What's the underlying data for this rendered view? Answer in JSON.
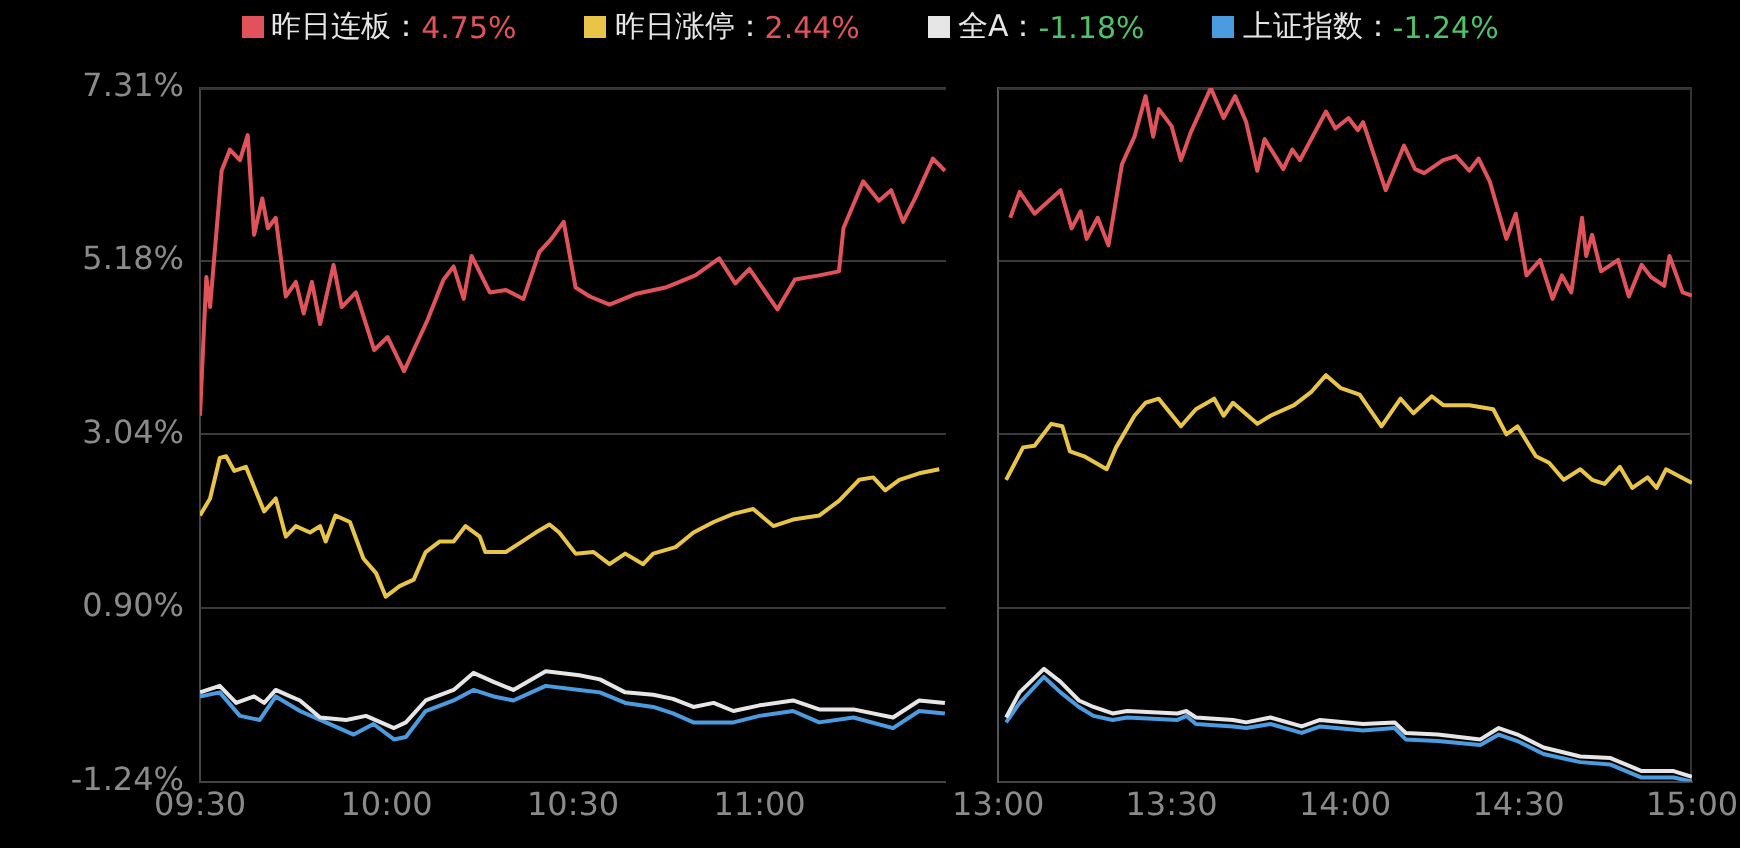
{
  "chart_data": [
    {
      "type": "line",
      "xlim": [
        9.5,
        11.5
      ],
      "xticks": [
        {
          "value": 9.5,
          "label": "09:30"
        },
        {
          "value": 10,
          "label": "10:00"
        },
        {
          "value": 10.5,
          "label": "10:30"
        },
        {
          "value": 11,
          "label": "11:00"
        }
      ],
      "ylim": [
        -1.24,
        7.31
      ],
      "yticks": [
        {
          "value": -1.24,
          "label": "-1.24%"
        },
        {
          "value": 0.9,
          "label": "0.90%"
        },
        {
          "value": 3.04,
          "label": "3.04%"
        },
        {
          "value": 5.18,
          "label": "5.18%"
        },
        {
          "value": 7.31,
          "label": "7.31%"
        }
      ],
      "grid": "y",
      "legend": "top",
      "marker": "none",
      "line_style": "solid",
      "series": [
        {
          "name": "昨日连板：4.75%",
          "color": "#e0535a",
          "x": [
            9.5,
            9.517,
            9.527,
            9.558,
            9.58,
            9.607,
            9.628,
            9.645,
            9.667,
            9.682,
            9.703,
            9.73,
            9.757,
            9.778,
            9.8,
            9.822,
            9.858,
            9.88,
            9.918,
            9.967,
            10.003,
            10.047,
            10.11,
            10.153,
            10.18,
            10.207,
            10.228,
            10.277,
            10.32,
            10.367,
            10.41,
            10.442,
            10.475,
            10.507,
            10.545,
            10.598,
            10.667,
            10.748,
            10.828,
            10.892,
            10.935,
            10.973,
            11.048,
            11.095,
            11.16,
            11.213,
            11.225,
            11.278,
            11.32,
            11.353,
            11.385,
            11.417,
            11.465,
            11.497
          ],
          "values": [
            3.27,
            4.98,
            4.61,
            6.29,
            6.55,
            6.42,
            6.73,
            5.5,
            5.95,
            5.58,
            5.71,
            4.74,
            4.92,
            4.53,
            4.92,
            4.4,
            5.13,
            4.61,
            4.79,
            4.08,
            4.24,
            3.82,
            4.45,
            4.95,
            5.11,
            4.71,
            5.24,
            4.79,
            4.82,
            4.71,
            5.29,
            5.45,
            5.66,
            4.85,
            4.74,
            4.64,
            4.77,
            4.85,
            5.0,
            5.21,
            4.9,
            5.08,
            4.58,
            4.95,
            5.0,
            5.05,
            5.58,
            6.16,
            5.92,
            6.05,
            5.66,
            5.95,
            6.44,
            6.29
          ]
        },
        {
          "name": "昨日涨停：2.44%",
          "color": "#e8c547",
          "x": [
            9.5,
            9.527,
            9.553,
            9.57,
            9.592,
            9.623,
            9.672,
            9.703,
            9.73,
            9.757,
            9.795,
            9.822,
            9.837,
            9.863,
            9.902,
            9.938,
            9.972,
            9.998,
            10.035,
            10.073,
            10.105,
            10.143,
            10.18,
            10.212,
            10.25,
            10.265,
            10.32,
            10.357,
            10.4,
            10.437,
            10.463,
            10.507,
            10.555,
            10.598,
            10.64,
            10.688,
            10.715,
            10.775,
            10.823,
            10.877,
            10.93,
            10.983,
            11.037,
            11.09,
            11.16,
            11.213,
            11.267,
            11.305,
            11.337,
            11.375,
            11.428,
            11.482
          ],
          "values": [
            2.04,
            2.25,
            2.75,
            2.77,
            2.59,
            2.64,
            2.09,
            2.25,
            1.78,
            1.91,
            1.83,
            1.91,
            1.72,
            2.04,
            1.96,
            1.51,
            1.33,
            1.04,
            1.17,
            1.25,
            1.59,
            1.72,
            1.72,
            1.91,
            1.78,
            1.59,
            1.59,
            1.7,
            1.83,
            1.93,
            1.83,
            1.57,
            1.59,
            1.44,
            1.57,
            1.44,
            1.57,
            1.65,
            1.83,
            1.96,
            2.06,
            2.12,
            1.91,
            1.99,
            2.04,
            2.22,
            2.48,
            2.51,
            2.35,
            2.48,
            2.56,
            2.61
          ]
        },
        {
          "name": "全A：-1.18%",
          "color": "#e6e6e6",
          "x": [
            9.5,
            9.553,
            9.597,
            9.645,
            9.672,
            9.703,
            9.742,
            9.768,
            9.822,
            9.892,
            9.945,
            10.02,
            10.052,
            10.105,
            10.18,
            10.233,
            10.287,
            10.34,
            10.427,
            10.517,
            10.572,
            10.64,
            10.715,
            10.768,
            10.823,
            10.877,
            10.93,
            11.0,
            11.09,
            11.16,
            11.252,
            11.358,
            11.428,
            11.497
          ],
          "values": [
            -0.14,
            -0.06,
            -0.27,
            -0.19,
            -0.27,
            -0.11,
            -0.19,
            -0.24,
            -0.45,
            -0.48,
            -0.43,
            -0.58,
            -0.51,
            -0.24,
            -0.11,
            0.1,
            -0.01,
            -0.11,
            0.12,
            0.07,
            0.02,
            -0.14,
            -0.17,
            -0.22,
            -0.32,
            -0.27,
            -0.37,
            -0.3,
            -0.24,
            -0.35,
            -0.35,
            -0.45,
            -0.24,
            -0.27
          ]
        },
        {
          "name": "上证指数：-1.24%",
          "color": "#4a9be0",
          "x": [
            9.5,
            9.553,
            9.607,
            9.66,
            9.703,
            9.768,
            9.822,
            9.912,
            9.965,
            10.02,
            10.052,
            10.105,
            10.18,
            10.233,
            10.287,
            10.34,
            10.427,
            10.517,
            10.572,
            10.64,
            10.715,
            10.768,
            10.823,
            10.93,
            11.0,
            11.09,
            11.16,
            11.252,
            11.358,
            11.428,
            11.497
          ],
          "values": [
            -0.19,
            -0.14,
            -0.43,
            -0.48,
            -0.19,
            -0.37,
            -0.48,
            -0.66,
            -0.53,
            -0.72,
            -0.69,
            -0.37,
            -0.24,
            -0.11,
            -0.19,
            -0.24,
            -0.06,
            -0.11,
            -0.14,
            -0.27,
            -0.32,
            -0.4,
            -0.51,
            -0.51,
            -0.43,
            -0.37,
            -0.51,
            -0.45,
            -0.58,
            -0.37,
            -0.4
          ]
        }
      ]
    },
    {
      "type": "line",
      "xlim": [
        13,
        15
      ],
      "xticks": [
        {
          "value": 13,
          "label": "13:00"
        },
        {
          "value": 13.5,
          "label": "13:30"
        },
        {
          "value": 14,
          "label": "14:00"
        },
        {
          "value": 14.5,
          "label": "14:30"
        },
        {
          "value": 15,
          "label": "15:00"
        }
      ],
      "ylim": [
        -1.24,
        7.31
      ],
      "yticks": [
        {
          "value": -1.24,
          "label": null
        },
        {
          "value": 0.9,
          "label": null
        },
        {
          "value": 3.04,
          "label": null
        },
        {
          "value": 5.18,
          "label": null
        },
        {
          "value": 7.31,
          "label": null
        }
      ],
      "tick_labels": "x",
      "grid": "y",
      "marker": "none",
      "line_style": "solid",
      "series": [
        {
          "color": "#e0535a",
          "x": [
            13.035,
            13.062,
            13.105,
            13.18,
            13.212,
            13.238,
            13.255,
            13.287,
            13.318,
            13.357,
            13.393,
            13.425,
            13.447,
            13.463,
            13.5,
            13.527,
            13.555,
            13.613,
            13.65,
            13.683,
            13.715,
            13.747,
            13.768,
            13.822,
            13.848,
            13.87,
            13.945,
            13.972,
            14.01,
            14.037,
            14.052,
            14.117,
            14.17,
            14.202,
            14.228,
            14.283,
            14.32,
            14.358,
            14.385,
            14.417,
            14.465,
            14.492,
            14.523,
            14.562,
            14.598,
            14.625,
            14.652,
            14.683,
            14.695,
            14.712,
            14.738,
            14.787,
            14.818,
            14.855,
            14.882,
            14.92,
            14.935,
            14.973,
            15
          ],
          "values": [
            5.71,
            6.03,
            5.76,
            6.05,
            5.58,
            5.79,
            5.45,
            5.71,
            5.37,
            6.37,
            6.71,
            7.21,
            6.71,
            7.05,
            6.84,
            6.42,
            6.76,
            7.31,
            6.94,
            7.21,
            6.89,
            6.29,
            6.68,
            6.31,
            6.55,
            6.42,
            7.02,
            6.81,
            6.94,
            6.79,
            6.89,
            6.05,
            6.6,
            6.31,
            6.26,
            6.42,
            6.47,
            6.29,
            6.44,
            6.16,
            5.45,
            5.76,
            5.0,
            5.19,
            4.71,
            5.0,
            4.79,
            5.71,
            5.24,
            5.5,
            5.05,
            5.19,
            4.74,
            5.13,
            4.98,
            4.87,
            5.24,
            4.79,
            4.75
          ]
        },
        {
          "color": "#e8c547",
          "x": [
            13.023,
            13.072,
            13.105,
            13.153,
            13.185,
            13.207,
            13.248,
            13.313,
            13.34,
            13.393,
            13.425,
            13.463,
            13.527,
            13.57,
            13.623,
            13.65,
            13.677,
            13.747,
            13.785,
            13.853,
            13.902,
            13.945,
            13.988,
            14.042,
            14.105,
            14.16,
            14.197,
            14.25,
            14.283,
            14.358,
            14.427,
            14.465,
            14.497,
            14.55,
            14.588,
            14.63,
            14.678,
            14.712,
            14.748,
            14.792,
            14.828,
            14.872,
            14.898,
            14.925,
            15
          ],
          "values": [
            2.48,
            2.88,
            2.9,
            3.17,
            3.14,
            2.83,
            2.77,
            2.61,
            2.88,
            3.27,
            3.43,
            3.48,
            3.14,
            3.35,
            3.48,
            3.27,
            3.43,
            3.17,
            3.27,
            3.4,
            3.56,
            3.77,
            3.61,
            3.53,
            3.14,
            3.48,
            3.3,
            3.51,
            3.4,
            3.4,
            3.35,
            3.04,
            3.14,
            2.77,
            2.69,
            2.48,
            2.61,
            2.48,
            2.43,
            2.64,
            2.38,
            2.51,
            2.38,
            2.61,
            2.44
          ]
        },
        {
          "color": "#e6e6e6",
          "x": [
            13.023,
            13.062,
            13.132,
            13.18,
            13.233,
            13.275,
            13.33,
            13.372,
            13.517,
            13.543,
            13.57,
            13.677,
            13.715,
            13.785,
            13.875,
            13.928,
            14.052,
            14.143,
            14.175,
            14.267,
            14.39,
            14.443,
            14.497,
            14.572,
            14.678,
            14.765,
            14.855,
            14.947,
            15
          ],
          "values": [
            -0.45,
            -0.14,
            0.15,
            -0.01,
            -0.24,
            -0.32,
            -0.4,
            -0.37,
            -0.4,
            -0.37,
            -0.45,
            -0.48,
            -0.51,
            -0.45,
            -0.56,
            -0.48,
            -0.53,
            -0.51,
            -0.64,
            -0.66,
            -0.72,
            -0.58,
            -0.66,
            -0.82,
            -0.93,
            -0.95,
            -1.11,
            -1.11,
            -1.18
          ]
        },
        {
          "color": "#4a9be0",
          "x": [
            13.023,
            13.062,
            13.132,
            13.18,
            13.233,
            13.275,
            13.33,
            13.372,
            13.517,
            13.543,
            13.57,
            13.677,
            13.715,
            13.785,
            13.875,
            13.928,
            14.052,
            14.143,
            14.175,
            14.267,
            14.39,
            14.443,
            14.497,
            14.572,
            14.678,
            14.765,
            14.855,
            14.947,
            15
          ],
          "values": [
            -0.51,
            -0.27,
            0.05,
            -0.14,
            -0.32,
            -0.43,
            -0.48,
            -0.45,
            -0.48,
            -0.43,
            -0.53,
            -0.56,
            -0.58,
            -0.53,
            -0.64,
            -0.56,
            -0.61,
            -0.58,
            -0.72,
            -0.74,
            -0.79,
            -0.66,
            -0.74,
            -0.9,
            -1.0,
            -1.03,
            -1.19,
            -1.19,
            -1.24
          ]
        }
      ]
    }
  ]
}
